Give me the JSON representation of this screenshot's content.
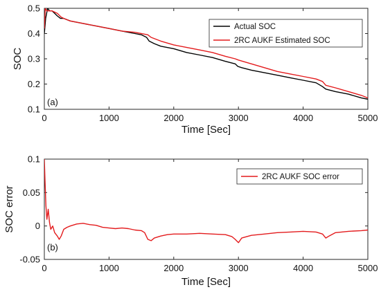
{
  "chart_data": [
    {
      "type": "line",
      "panel_tag": "(a)",
      "xlabel": "Time [Sec]",
      "ylabel": "SOC",
      "xlim": [
        0,
        5000
      ],
      "ylim": [
        0.1,
        0.5
      ],
      "xticks": [
        0,
        1000,
        2000,
        3000,
        4000,
        5000
      ],
      "yticks": [
        0.1,
        0.2,
        0.3,
        0.4,
        0.5
      ],
      "ytick_labels": [
        "0.1",
        "0.2",
        "0.3",
        "0.4",
        "0.5"
      ],
      "grid": false,
      "legend": "top-right",
      "series": [
        {
          "name": "Actual SOC",
          "color": "#000000",
          "x": [
            0,
            20,
            50,
            80,
            120,
            160,
            200,
            250,
            300,
            400,
            600,
            800,
            1000,
            1200,
            1400,
            1500,
            1580,
            1620,
            1700,
            1800,
            2000,
            2200,
            2400,
            2600,
            2800,
            2950,
            2990,
            3050,
            3200,
            3400,
            3600,
            3800,
            4000,
            4200,
            4300,
            4350,
            4500,
            4700,
            4900,
            5000
          ],
          "y": [
            0.4,
            0.46,
            0.5,
            0.49,
            0.49,
            0.48,
            0.47,
            0.46,
            0.46,
            0.45,
            0.44,
            0.43,
            0.42,
            0.41,
            0.4,
            0.395,
            0.385,
            0.37,
            0.36,
            0.35,
            0.34,
            0.325,
            0.315,
            0.305,
            0.29,
            0.28,
            0.27,
            0.265,
            0.255,
            0.245,
            0.235,
            0.225,
            0.215,
            0.205,
            0.19,
            0.18,
            0.17,
            0.16,
            0.145,
            0.14
          ]
        },
        {
          "name": "2RC AUKF Estimated SOC",
          "color": "#e31a1c",
          "x": [
            0,
            15,
            40,
            80,
            120,
            200,
            260,
            300,
            400,
            600,
            800,
            1000,
            1200,
            1400,
            1600,
            1650,
            1800,
            2000,
            2200,
            2400,
            2600,
            2800,
            2950,
            3000,
            3200,
            3400,
            3600,
            3800,
            4000,
            4200,
            4300,
            4350,
            4500,
            4700,
            4900,
            5000
          ],
          "y": [
            0.42,
            0.5,
            0.49,
            0.49,
            0.49,
            0.48,
            0.465,
            0.46,
            0.45,
            0.44,
            0.43,
            0.42,
            0.41,
            0.405,
            0.395,
            0.385,
            0.37,
            0.355,
            0.345,
            0.335,
            0.325,
            0.31,
            0.3,
            0.295,
            0.28,
            0.265,
            0.25,
            0.24,
            0.23,
            0.22,
            0.21,
            0.195,
            0.185,
            0.17,
            0.155,
            0.145
          ]
        }
      ]
    },
    {
      "type": "line",
      "panel_tag": "(b)",
      "xlabel": "Time [Sec]",
      "ylabel": "SOC error",
      "xlim": [
        0,
        5000
      ],
      "ylim": [
        -0.05,
        0.1
      ],
      "xticks": [
        0,
        1000,
        2000,
        3000,
        4000,
        5000
      ],
      "yticks": [
        -0.05,
        0,
        0.05,
        0.1
      ],
      "ytick_labels": [
        "-0.05",
        "0",
        "0.05",
        "0.1"
      ],
      "grid": false,
      "legend": "top-right",
      "series": [
        {
          "name": "2RC AUKF SOC error",
          "color": "#e31a1c",
          "x": [
            0,
            10,
            25,
            40,
            60,
            80,
            100,
            130,
            160,
            200,
            230,
            260,
            300,
            350,
            400,
            500,
            600,
            700,
            800,
            900,
            1000,
            1100,
            1200,
            1300,
            1400,
            1500,
            1550,
            1600,
            1650,
            1700,
            1800,
            1900,
            2000,
            2200,
            2400,
            2600,
            2800,
            2900,
            2950,
            3000,
            3050,
            3200,
            3400,
            3600,
            3800,
            4000,
            4200,
            4300,
            4350,
            4400,
            4500,
            4700,
            4900,
            5000
          ],
          "y": [
            0.1,
            0.07,
            0.03,
            0.01,
            0.025,
            0.005,
            -0.005,
            0.0,
            -0.01,
            -0.015,
            -0.02,
            -0.015,
            -0.005,
            -0.002,
            0.0,
            0.003,
            0.004,
            0.002,
            0.001,
            -0.002,
            -0.003,
            -0.004,
            -0.003,
            -0.004,
            -0.006,
            -0.007,
            -0.01,
            -0.02,
            -0.022,
            -0.018,
            -0.015,
            -0.013,
            -0.012,
            -0.012,
            -0.011,
            -0.012,
            -0.013,
            -0.016,
            -0.02,
            -0.025,
            -0.018,
            -0.014,
            -0.012,
            -0.01,
            -0.009,
            -0.008,
            -0.009,
            -0.012,
            -0.018,
            -0.015,
            -0.01,
            -0.008,
            -0.007,
            -0.006
          ]
        }
      ]
    }
  ]
}
